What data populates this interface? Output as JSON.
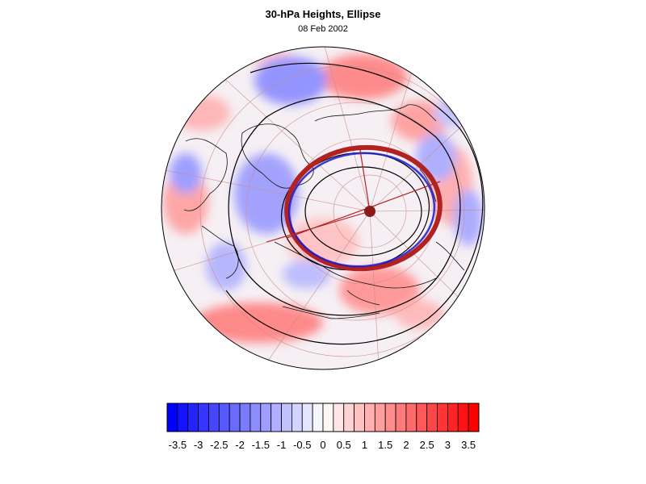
{
  "title": "30-hPa Heights, Ellipse",
  "subtitle": "08 Feb 2002",
  "colorbar": {
    "tick_labels": [
      "-3.5",
      "-3",
      "-2.5",
      "-2",
      "-1.5",
      "-1",
      "-0.5",
      "0",
      "0.5",
      "1",
      "1.5",
      "2",
      "2.5",
      "3",
      "3.5"
    ],
    "min": -3.75,
    "max": 3.75,
    "step": 0.25,
    "negative_color": "#0000ff",
    "positive_color": "#ff0000",
    "neutral_color": "#ffffff"
  },
  "map": {
    "projection": "north-polar-stereographic",
    "ellipse_outline_color": "#b22222",
    "ellipse_inner_color": "#1a1acc",
    "contour_color": "#000000",
    "graticule_color": "#c98b8b",
    "center_marker_color": "#8b1a1a"
  }
}
